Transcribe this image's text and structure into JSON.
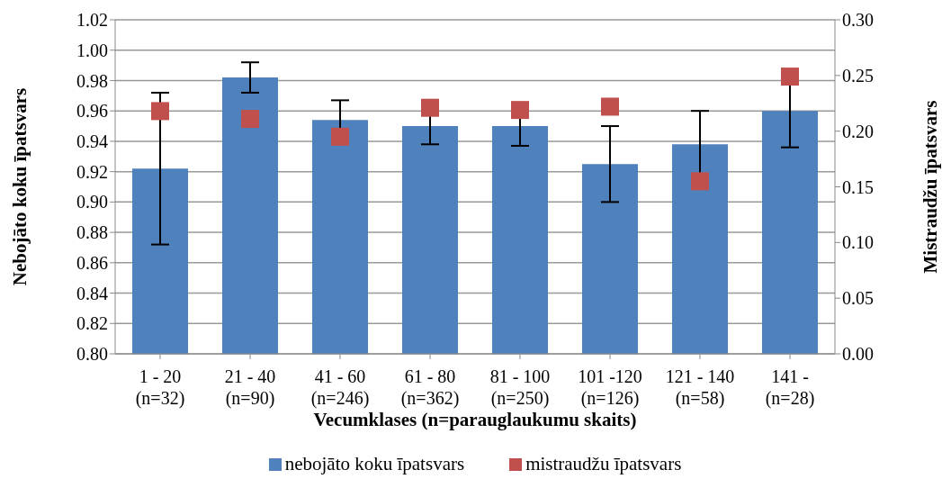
{
  "chart_data": {
    "type": "bar",
    "xlabel": "Vecumklases (n=parauglaukumu skaits)",
    "ylabel": "Nebojāto koku īpatsvars",
    "y2label": "Mistraudžu īpatsvars",
    "categories": [
      "1 - 20\n(n=32)",
      "21 - 40\n(n=90)",
      "41 - 60\n(n=246)",
      "61 - 80\n(n=362)",
      "81 - 100\n(n=250)",
      "101 -120\n(n=126)",
      "121 - 140\n(n=58)",
      "141 -\n(n=28)"
    ],
    "series": [
      {
        "name": "nebojāto koku īpatsvars",
        "color": "#4f81bd",
        "values": [
          0.922,
          0.982,
          0.954,
          0.95,
          0.95,
          0.925,
          0.938,
          0.96
        ],
        "errors": [
          0.05,
          0.01,
          0.013,
          0.012,
          0.013,
          0.025,
          0.022,
          0.024
        ]
      },
      {
        "name": "mistraudžu īpatsvars",
        "type": "scatter",
        "axis": "y2",
        "marker": "square",
        "color": "#c0504d",
        "values": [
          0.218,
          0.211,
          0.195,
          0.221,
          0.219,
          0.222,
          0.155,
          0.249
        ]
      }
    ],
    "ylim": [
      0.8,
      1.02
    ],
    "yticks": [
      {
        "value": 0.8,
        "label": "0.80"
      },
      {
        "value": 0.82,
        "label": "0.82"
      },
      {
        "value": 0.84,
        "label": "0.84"
      },
      {
        "value": 0.86,
        "label": "0.86"
      },
      {
        "value": 0.88,
        "label": "0.88"
      },
      {
        "value": 0.9,
        "label": "0.90"
      },
      {
        "value": 0.92,
        "label": "0.92"
      },
      {
        "value": 0.94,
        "label": "0.94"
      },
      {
        "value": 0.96,
        "label": "0.96"
      },
      {
        "value": 0.98,
        "label": "0.98"
      },
      {
        "value": 1.0,
        "label": "1.00"
      },
      {
        "value": 1.02,
        "label": "1.02"
      }
    ],
    "y2lim": [
      0,
      0.3
    ],
    "y2ticks": [
      {
        "value": 0,
        "label": "0.00"
      },
      {
        "value": 0.05,
        "label": "0.05"
      },
      {
        "value": 0.1,
        "label": "0.10"
      },
      {
        "value": 0.15,
        "label": "0.15"
      },
      {
        "value": 0.2,
        "label": "0.20"
      },
      {
        "value": 0.25,
        "label": "0.25"
      },
      {
        "value": 0.3,
        "label": "0.30"
      }
    ],
    "grid": "y",
    "legend": "bottom"
  }
}
